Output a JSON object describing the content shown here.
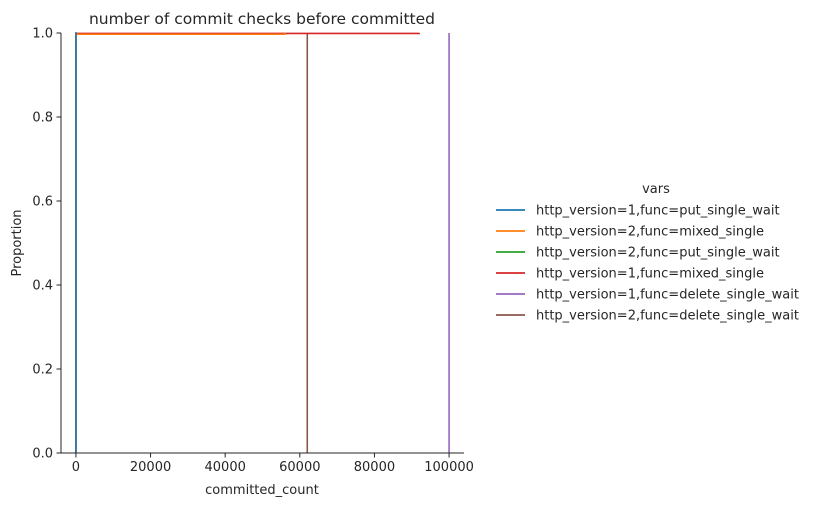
{
  "chart_data": {
    "type": "line",
    "subtype": "ecdf",
    "title": "number of commit checks before committed",
    "xlabel": "committed_count",
    "ylabel": "Proportion",
    "xlim": [
      -4000,
      104000
    ],
    "ylim": [
      0,
      1
    ],
    "x_ticks": [
      0,
      20000,
      40000,
      60000,
      80000,
      100000
    ],
    "x_tick_labels": [
      "0",
      "20000",
      "40000",
      "60000",
      "80000",
      "100000"
    ],
    "y_ticks": [
      0,
      0.2,
      0.4,
      0.6,
      0.8,
      1.0
    ],
    "y_tick_labels": [
      "0.0",
      "0.2",
      "0.4",
      "0.6",
      "0.8",
      "1.0"
    ],
    "grid": false,
    "legend_title": "vars",
    "legend_placement": "right",
    "series": [
      {
        "name": "http_version=1,func=put_single_wait",
        "color": "#1f77b4",
        "points": [
          [
            0,
            0
          ],
          [
            0,
            1
          ],
          [
            200,
            1
          ]
        ]
      },
      {
        "name": "http_version=2,func=mixed_single",
        "color": "#ff7f0e",
        "points": [
          [
            0,
            0
          ],
          [
            0,
            0.997
          ],
          [
            56000,
            0.997
          ],
          [
            56000,
            1
          ]
        ]
      },
      {
        "name": "http_version=2,func=put_single_wait",
        "color": "#2ca02c",
        "points": [
          [
            0,
            0
          ],
          [
            0,
            1
          ],
          [
            200,
            1
          ]
        ]
      },
      {
        "name": "http_version=1,func=mixed_single",
        "color": "#d62728",
        "points": [
          [
            0,
            0
          ],
          [
            0,
            0.999
          ],
          [
            92000,
            0.999
          ],
          [
            92000,
            1
          ]
        ]
      },
      {
        "name": "http_version=1,func=delete_single_wait",
        "color": "#9467bd",
        "points": [
          [
            100000,
            0
          ],
          [
            100000,
            1
          ]
        ]
      },
      {
        "name": "http_version=2,func=delete_single_wait",
        "color": "#8c564b",
        "points": [
          [
            62000,
            0
          ],
          [
            62000,
            1
          ]
        ]
      }
    ]
  }
}
